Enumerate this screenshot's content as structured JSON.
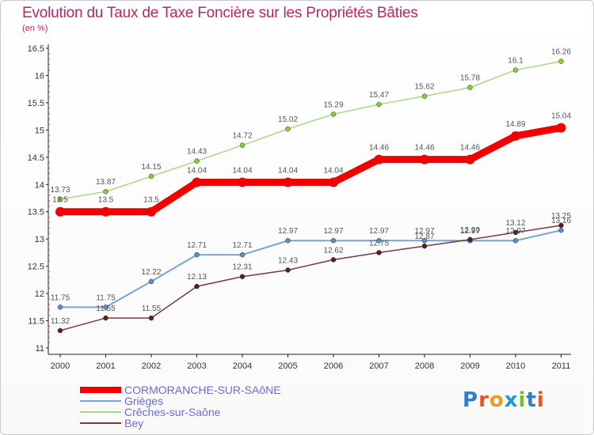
{
  "title": "Evolution du Taux de Taxe Foncière sur les Propriétés Bâties",
  "unit": "(en %)",
  "logo": {
    "chars": [
      "P",
      "r",
      "o",
      "x",
      "i",
      "t",
      "i"
    ],
    "colors": [
      "#2b7fd4",
      "#e0562a",
      "#f39a1d",
      "#1e9ad6",
      "#7cbd2a",
      "#2b7fd4",
      "#e0562a"
    ]
  },
  "chart_data": {
    "type": "line",
    "title": "Evolution du Taux de Taxe Foncière sur les Propriétés Bâties",
    "ylabel": "(en %)",
    "xlabel": "",
    "x": [
      "2000",
      "2001",
      "2002",
      "2003",
      "2004",
      "2005",
      "2006",
      "2007",
      "2008",
      "2009",
      "2010",
      "2011"
    ],
    "ylim": [
      11,
      16.5
    ],
    "yticks": [
      "11",
      "11.5",
      "12",
      "12.5",
      "13",
      "13.5",
      "14",
      "14.5",
      "15",
      "15.5",
      "16",
      "16.5"
    ],
    "grid": false,
    "legend_position": "bottom-left",
    "series": [
      {
        "name": "CORMORANCHE-SUR-SAôNE",
        "color": "#f20000",
        "marker": "#f20000",
        "width": 9,
        "values": [
          13.5,
          13.5,
          13.5,
          14.04,
          14.04,
          14.04,
          14.04,
          14.46,
          14.46,
          14.46,
          14.89,
          15.04
        ],
        "labels": [
          "13.5",
          "13.5",
          "13.5",
          "14.04",
          "14.04",
          "14.04",
          "14.04",
          "14.46",
          "14.46",
          "14.46",
          "14.89",
          "15.04"
        ]
      },
      {
        "name": "Grièges",
        "color": "#76a6d6",
        "marker": "#5a8fc8",
        "width": 2,
        "values": [
          11.75,
          11.75,
          12.22,
          12.71,
          12.71,
          12.97,
          12.97,
          12.97,
          12.97,
          12.97,
          12.97,
          13.16
        ],
        "labels": [
          "11.75",
          "11.75",
          "12.22",
          "12.71",
          "12.71",
          "12.97",
          "12.97",
          "12.97",
          "12.97",
          "12.97",
          "12.97",
          "13.16"
        ]
      },
      {
        "name": "Crêches-sur-Saône",
        "color": "#a6db84",
        "marker": "#8bcc3a",
        "width": 1.5,
        "values": [
          13.73,
          13.87,
          14.15,
          14.43,
          14.72,
          15.02,
          15.29,
          15.47,
          15.62,
          15.78,
          16.1,
          16.26
        ],
        "labels": [
          "13.73",
          "13.87",
          "14.15",
          "14.43",
          "14.72",
          "15.02",
          "15.29",
          "15.47",
          "15.62",
          "15.78",
          "16.1",
          "16.26"
        ]
      },
      {
        "name": "Bey",
        "color": "#7a3a3a",
        "marker": "#5a1e22",
        "width": 1.5,
        "values": [
          11.32,
          11.55,
          11.55,
          12.13,
          12.31,
          12.43,
          12.62,
          12.75,
          12.87,
          12.99,
          13.12,
          13.25
        ],
        "labels": [
          "11.32",
          "11.55",
          "11.55",
          "12.13",
          "12.31",
          "12.43",
          "12.62",
          "12.75",
          "12.87",
          "12.99",
          "13.12",
          "13.25"
        ]
      }
    ]
  }
}
